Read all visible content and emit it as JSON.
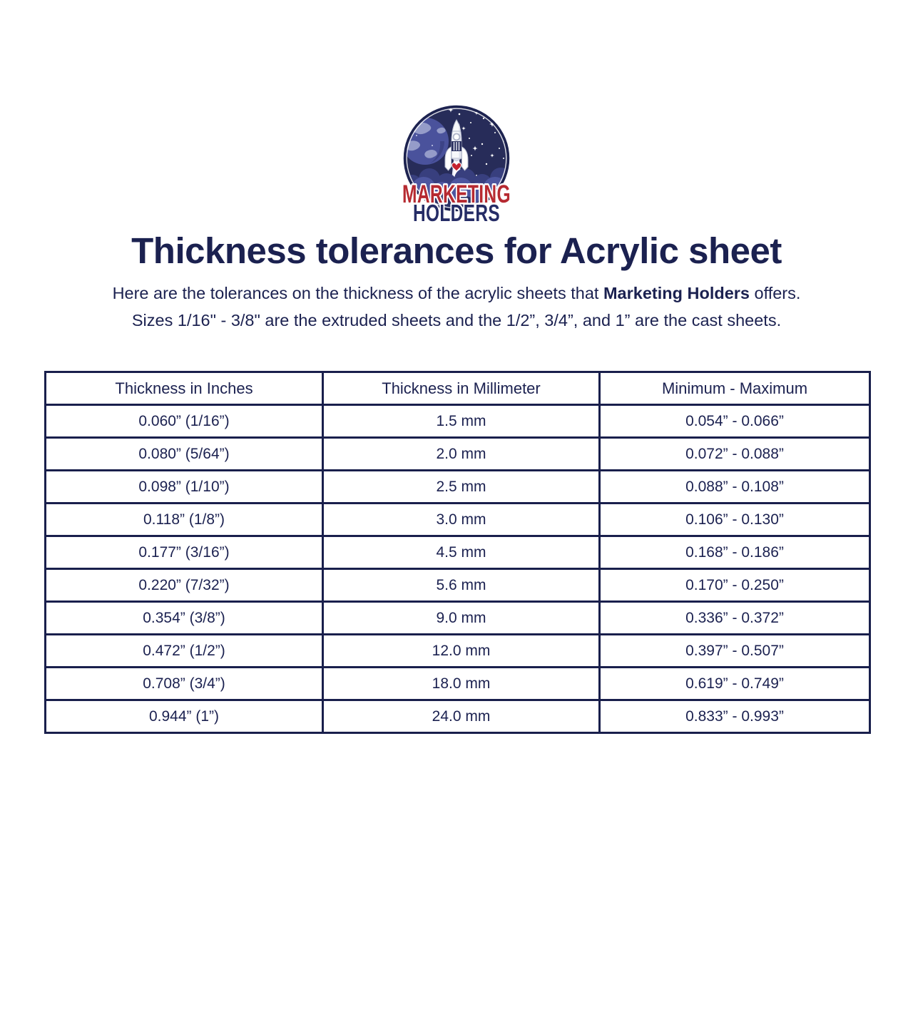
{
  "colors": {
    "text_navy": "#1b2150",
    "border_navy": "#191f4c",
    "brand_red": "#b62a31",
    "brand_navy": "#252c66",
    "logo_sky": "#272c59",
    "logo_planet": "#4a529c",
    "logo_cloud_light": "#4d56a0",
    "heart_red": "#c5212e"
  },
  "logo": {
    "brand_line1": "MARKETING",
    "brand_line2": "HOLDERS"
  },
  "header": {
    "title": "Thickness tolerances for Acrylic sheet"
  },
  "intro": {
    "part1": "Here are the tolerances on the thickness of the acrylic sheets that ",
    "brand": "Marketing Holders",
    "part2": " offers.",
    "line2": "Sizes 1/16\" - 3/8\" are the extruded sheets and the 1/2”, 3/4”, and 1” are the cast sheets."
  },
  "table": {
    "headers": [
      "Thickness in Inches",
      "Thickness in Millimeter",
      "Minimum - Maximum"
    ],
    "rows": [
      [
        "0.060” (1/16”)",
        "1.5 mm",
        "0.054” - 0.066”"
      ],
      [
        "0.080” (5/64”)",
        "2.0 mm",
        "0.072” - 0.088”"
      ],
      [
        "0.098” (1/10”)",
        "2.5 mm",
        "0.088” - 0.108”"
      ],
      [
        "0.118” (1/8”)",
        "3.0 mm",
        "0.106” - 0.130”"
      ],
      [
        "0.177” (3/16”)",
        "4.5 mm",
        "0.168” - 0.186”"
      ],
      [
        "0.220” (7/32”)",
        "5.6 mm",
        "0.170” - 0.250”"
      ],
      [
        "0.354” (3/8”)",
        "9.0 mm",
        "0.336” - 0.372”"
      ],
      [
        "0.472” (1/2”)",
        "12.0 mm",
        "0.397” - 0.507”"
      ],
      [
        "0.708” (3/4”)",
        "18.0 mm",
        "0.619” - 0.749”"
      ],
      [
        "0.944” (1”)",
        "24.0 mm",
        "0.833” - 0.993”"
      ]
    ]
  }
}
